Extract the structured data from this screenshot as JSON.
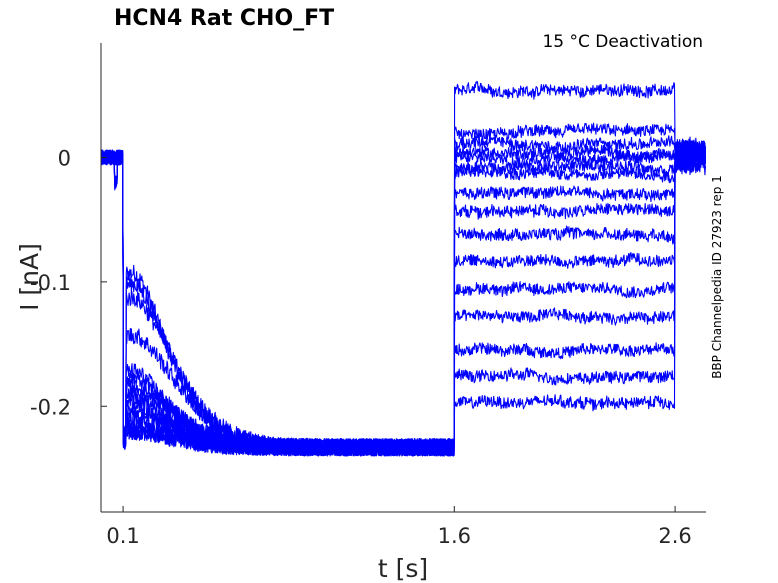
{
  "chart_data": {
    "type": "line",
    "title": "HCN4  Rat  CHO_FT",
    "subtitle": "15 °C  Deactivation",
    "side_label": "BBP Channelpedia ID 27923 rep 1",
    "xlabel": "t [s]",
    "ylabel": "I [nA]",
    "xlim": [
      0.0,
      2.74
    ],
    "ylim": [
      -0.285,
      0.092
    ],
    "x_ticks": [
      0.1,
      1.6,
      2.6
    ],
    "x_tick_labels": [
      "0.1",
      "1.6",
      "2.6"
    ],
    "y_ticks": [
      0,
      -0.1,
      -0.2
    ],
    "y_tick_labels": [
      "0",
      "-0.1",
      "-0.2"
    ],
    "grid": false,
    "line_color": "#0000ff",
    "protocol_times_s": {
      "step1_start": 0.1,
      "step2_start": 1.6,
      "step2_end": 2.6
    },
    "holding_current_nA": 0.0,
    "steady_state_step1_nA": -0.233,
    "step1_initial_currents_nA": [
      -0.093,
      -0.102,
      -0.113,
      -0.143,
      -0.172,
      -0.178,
      -0.184,
      -0.19,
      -0.195,
      -0.2,
      -0.205,
      -0.21,
      -0.215,
      -0.22
    ],
    "step2_currents_nA": [
      0.054,
      0.02,
      0.011,
      0.004,
      0.0,
      -0.007,
      -0.013,
      -0.028,
      -0.043,
      -0.061,
      -0.083,
      -0.105,
      -0.128,
      -0.155,
      -0.176,
      -0.197
    ]
  }
}
